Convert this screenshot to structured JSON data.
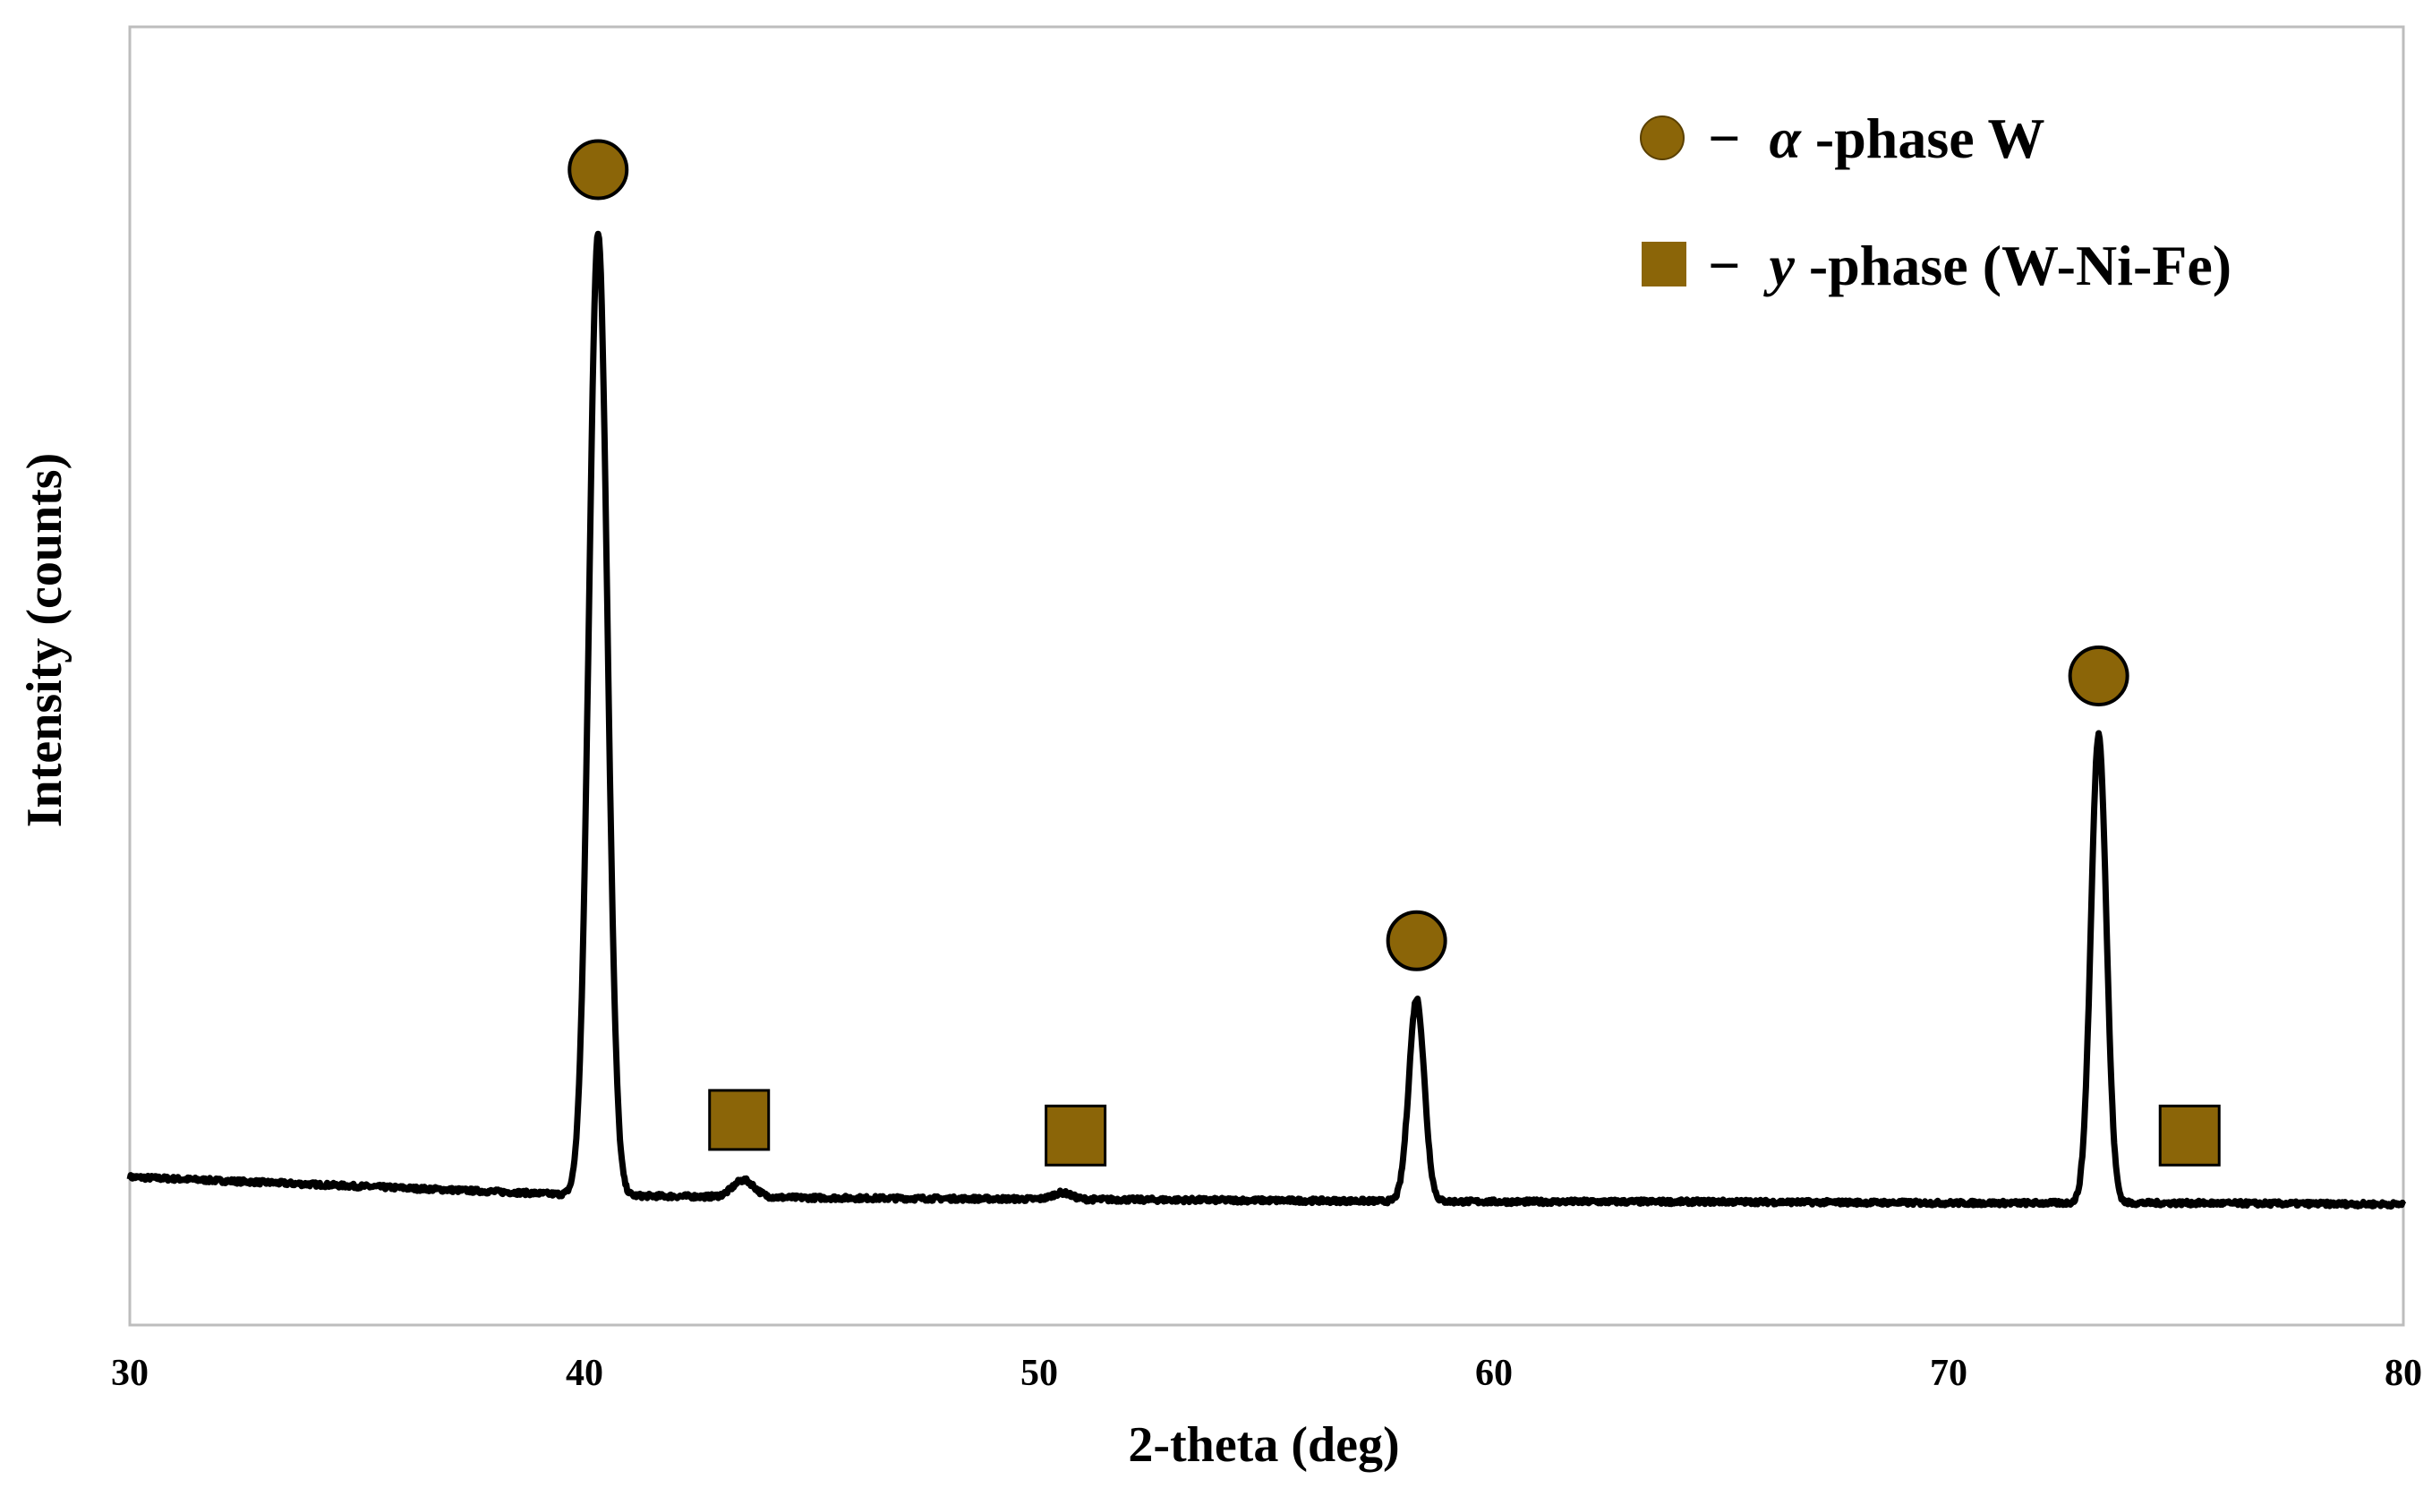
{
  "chart_data": {
    "type": "line",
    "title": "",
    "xlabel": "2-theta (deg)",
    "ylabel": "Intensity (counts)",
    "xlim": [
      30,
      80
    ],
    "ylim": [
      0,
      100
    ],
    "y_ticks_shown": false,
    "grid": false,
    "x_ticks": [
      "30",
      "40",
      "50",
      "60",
      "70",
      "80"
    ],
    "colors": {
      "line": "#000000",
      "marker": "#8B6508"
    },
    "baseline": [
      [
        30,
        11.4
      ],
      [
        35,
        10.7
      ],
      [
        40,
        10.0
      ],
      [
        45,
        9.8
      ],
      [
        50,
        9.7
      ],
      [
        55,
        9.6
      ],
      [
        60,
        9.5
      ],
      [
        65,
        9.5
      ],
      [
        70,
        9.4
      ],
      [
        75,
        9.4
      ],
      [
        80,
        9.3
      ]
    ],
    "peaks": [
      {
        "x": 40.3,
        "height": 74.2,
        "width": 0.3,
        "phase": "alpha"
      },
      {
        "x": 43.5,
        "height": 1.3,
        "width": 0.35,
        "phase": "gamma"
      },
      {
        "x": 50.5,
        "height": 0.5,
        "width": 0.3,
        "phase": "gamma"
      },
      {
        "x": 58.3,
        "height": 15.6,
        "width": 0.25,
        "phase": "alpha"
      },
      {
        "x": 73.3,
        "height": 36.1,
        "width": 0.25,
        "phase": "alpha"
      }
    ],
    "markers": [
      {
        "shape": "circle",
        "x": 40.3,
        "y": 89.0
      },
      {
        "shape": "square",
        "x": 43.4,
        "y": 15.8
      },
      {
        "shape": "square",
        "x": 50.8,
        "y": 14.6
      },
      {
        "shape": "circle",
        "x": 58.3,
        "y": 29.6
      },
      {
        "shape": "circle",
        "x": 73.3,
        "y": 50.0
      },
      {
        "shape": "square",
        "x": 75.3,
        "y": 14.6
      }
    ],
    "legend": {
      "position": "top-right",
      "entries": [
        {
          "shape": "circle",
          "dash": "−",
          "greek": "α",
          "label": "-phase W"
        },
        {
          "shape": "square",
          "dash": "−",
          "greek": "y",
          "label": "-phase (W-Ni-Fe)"
        }
      ]
    }
  }
}
